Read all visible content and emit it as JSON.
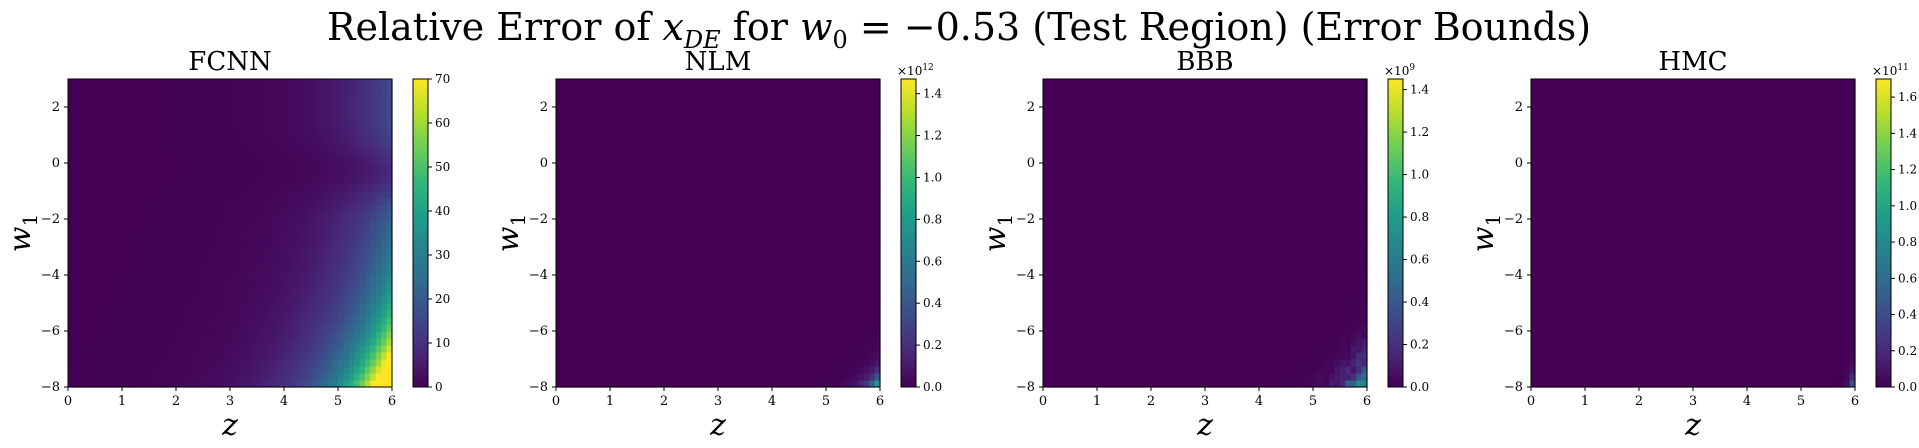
{
  "figure": {
    "title_prefix": "Relative Error of ",
    "title_var": "x",
    "title_var_sub": "DE",
    "title_mid": " for ",
    "title_param": "w",
    "title_param_sub": "0",
    "title_suffix": " = −0.53 (Test Region) (Error Bounds)"
  },
  "colormap": "viridis",
  "colormap_stops": [
    "#440154",
    "#482878",
    "#3e4989",
    "#31688e",
    "#26828e",
    "#1f9e89",
    "#35b779",
    "#6ece58",
    "#b5de2b",
    "#fde725"
  ],
  "chart_data": [
    {
      "type": "heatmap",
      "title": "FCNN",
      "xlabel": "z",
      "ylabel": "w",
      "ylabel_sub": "1",
      "xlim": [
        0,
        6
      ],
      "ylim": [
        -8,
        3
      ],
      "xticks": [
        0,
        1,
        2,
        3,
        4,
        5,
        6
      ],
      "yticks": [
        2,
        0,
        -2,
        -4,
        -6,
        -8
      ],
      "ytick_labels": [
        "2",
        "0",
        "−2",
        "−4",
        "−6",
        "−8"
      ],
      "colorbar": {
        "min": 0,
        "max": 70,
        "ticks": [
          0,
          10,
          20,
          30,
          40,
          50,
          60,
          70
        ],
        "tick_labels": [
          "0",
          "10",
          "20",
          "30",
          "40",
          "50",
          "60",
          "70"
        ],
        "multiplier": ""
      },
      "pattern": "smooth-right",
      "peak_value": 70,
      "peak_location": {
        "z": 6,
        "w1": -8
      }
    },
    {
      "type": "heatmap",
      "title": "NLM",
      "xlabel": "z",
      "ylabel": "w",
      "ylabel_sub": "1",
      "xlim": [
        0,
        6
      ],
      "ylim": [
        -8,
        3
      ],
      "xticks": [
        0,
        1,
        2,
        3,
        4,
        5,
        6
      ],
      "yticks": [
        2,
        0,
        -2,
        -4,
        -6,
        -8
      ],
      "ytick_labels": [
        "2",
        "0",
        "−2",
        "−4",
        "−6",
        "−8"
      ],
      "colorbar": {
        "min": 0,
        "max": 1.47,
        "ticks": [
          0,
          0.2,
          0.4,
          0.6,
          0.8,
          1.0,
          1.2,
          1.4
        ],
        "tick_labels": [
          "0.0",
          "0.2",
          "0.4",
          "0.6",
          "0.8",
          "1.0",
          "1.2",
          "1.4"
        ],
        "multiplier": "×10",
        "multiplier_exp": "12"
      },
      "pattern": "corner-glow",
      "peak_value": 1.47,
      "peak_location": {
        "z": 6,
        "w1": -8
      }
    },
    {
      "type": "heatmap",
      "title": "BBB",
      "xlabel": "z",
      "ylabel": "w",
      "ylabel_sub": "1",
      "xlim": [
        0,
        6
      ],
      "ylim": [
        -8,
        3
      ],
      "xticks": [
        0,
        1,
        2,
        3,
        4,
        5,
        6
      ],
      "yticks": [
        2,
        0,
        -2,
        -4,
        -6,
        -8
      ],
      "ytick_labels": [
        "2",
        "0",
        "−2",
        "−4",
        "−6",
        "−8"
      ],
      "colorbar": {
        "min": 0,
        "max": 1.45,
        "ticks": [
          0,
          0.2,
          0.4,
          0.6,
          0.8,
          1.0,
          1.2,
          1.4
        ],
        "tick_labels": [
          "0.0",
          "0.2",
          "0.4",
          "0.6",
          "0.8",
          "1.0",
          "1.2",
          "1.4"
        ],
        "multiplier": "×10",
        "multiplier_exp": "9"
      },
      "pattern": "corner-noisy",
      "peak_value": 1.45,
      "peak_location": {
        "z": 5.9,
        "w1": -8
      }
    },
    {
      "type": "heatmap",
      "title": "HMC",
      "xlabel": "z",
      "ylabel": "w",
      "ylabel_sub": "1",
      "xlim": [
        0,
        6
      ],
      "ylim": [
        -8,
        3
      ],
      "xticks": [
        0,
        1,
        2,
        3,
        4,
        5,
        6
      ],
      "yticks": [
        2,
        0,
        -2,
        -4,
        -6,
        -8
      ],
      "ytick_labels": [
        "2",
        "0",
        "−2",
        "−4",
        "−6",
        "−8"
      ],
      "colorbar": {
        "min": 0,
        "max": 1.7,
        "ticks": [
          0,
          0.2,
          0.4,
          0.6,
          0.8,
          1.0,
          1.2,
          1.4,
          1.6
        ],
        "tick_labels": [
          "0.0",
          "0.2",
          "0.4",
          "0.6",
          "0.8",
          "1.0",
          "1.2",
          "1.4",
          "1.6"
        ],
        "multiplier": "×10",
        "multiplier_exp": "11"
      },
      "pattern": "corner-tiny",
      "peak_value": 1.7,
      "peak_location": {
        "z": 6,
        "w1": -8
      }
    }
  ]
}
